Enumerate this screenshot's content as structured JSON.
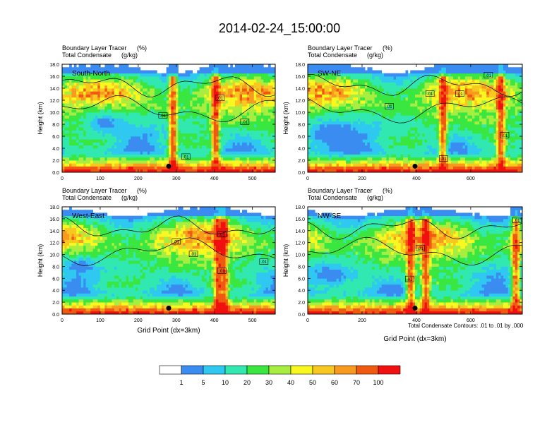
{
  "chart_data": {
    "type": "heatmap",
    "title": "2014-02-24_15:00:00",
    "panels": [
      {
        "label": "South-North",
        "subtitle_left_1": "Boundary Layer Tracer",
        "subtitle_right_1": "(%)",
        "subtitle_left_2": "Total Condensate",
        "subtitle_right_2": "(g/kg)",
        "ylabel": "Height (km)",
        "xlabel": "",
        "xlim": [
          0,
          560
        ],
        "ylim": [
          0,
          18
        ],
        "xticks": [
          0,
          100,
          200,
          300,
          400,
          500
        ],
        "yticks": [
          0.0,
          2.0,
          4.0,
          6.0,
          8.0,
          10.0,
          12.0,
          14.0,
          16.0,
          18.0
        ],
        "ytick_labels": [
          "0.0",
          "2.0",
          "4.0",
          "6.0",
          "8.0",
          "10.0",
          "12.0",
          "14.0",
          "16.0",
          "18.0"
        ],
        "marker": {
          "x": 280,
          "y": 1.0
        },
        "contour_labels": [
          {
            "text": ".01",
            "x": 415,
            "y": 12.4
          },
          {
            "text": ".01",
            "x": 265,
            "y": 9.5
          },
          {
            "text": ".01",
            "x": 480,
            "y": 8.4
          },
          {
            "text": ".01",
            "x": 325,
            "y": 2.6
          }
        ]
      },
      {
        "label": "SW-NE",
        "subtitle_left_1": "Boundary Layer Tracer",
        "subtitle_right_1": "(%)",
        "subtitle_left_2": "Total Condensate",
        "subtitle_right_2": "(g/kg)",
        "ylabel": "Height (km)",
        "xlabel": "",
        "xlim": [
          0,
          790
        ],
        "ylim": [
          0,
          18
        ],
        "xticks": [
          0,
          200,
          400,
          600
        ],
        "yticks": [
          0.0,
          2.0,
          4.0,
          6.0,
          8.0,
          10.0,
          12.0,
          14.0,
          16.0,
          18.0
        ],
        "ytick_labels": [
          "0.0",
          "2.0",
          "4.0",
          "6.0",
          "8.0",
          "10.0",
          "12.0",
          "14.0",
          "16.0",
          "18.0"
        ],
        "marker": {
          "x": 395,
          "y": 1.0
        },
        "contour_labels": [
          {
            "text": ".01",
            "x": 665,
            "y": 16.2
          },
          {
            "text": ".01",
            "x": 450,
            "y": 13.1
          },
          {
            "text": ".01",
            "x": 560,
            "y": 13.1
          },
          {
            "text": ".01",
            "x": 300,
            "y": 11.0
          },
          {
            "text": ".01",
            "x": 725,
            "y": 6.2
          },
          {
            "text": ".01",
            "x": 500,
            "y": 2.3
          }
        ]
      },
      {
        "label": "West-East",
        "subtitle_left_1": "Boundary Layer Tracer",
        "subtitle_right_1": "(%)",
        "subtitle_left_2": "Total Condensate",
        "subtitle_right_2": "(g/kg)",
        "ylabel": "Height (km)",
        "xlabel": "Grid Point (dx=3km)",
        "xlim": [
          0,
          560
        ],
        "ylim": [
          0,
          18
        ],
        "xticks": [
          0,
          100,
          200,
          300,
          400,
          500
        ],
        "yticks": [
          0.0,
          2.0,
          4.0,
          6.0,
          8.0,
          10.0,
          12.0,
          14.0,
          16.0,
          18.0
        ],
        "ytick_labels": [
          "0.0",
          "2.0",
          "4.0",
          "6.0",
          "8.0",
          "10.0",
          "12.0",
          "14.0",
          "16.0",
          "18.0"
        ],
        "marker": {
          "x": 280,
          "y": 1.0
        },
        "contour_labels": [
          {
            "text": ".01",
            "x": 420,
            "y": 13.4
          },
          {
            "text": ".01",
            "x": 300,
            "y": 12.2
          },
          {
            "text": ".01",
            "x": 345,
            "y": 10.1
          },
          {
            "text": ".01",
            "x": 530,
            "y": 8.8
          },
          {
            "text": ".01",
            "x": 420,
            "y": 7.3
          }
        ]
      },
      {
        "label": "NW-SE",
        "subtitle_left_1": "Boundary Layer Tracer",
        "subtitle_right_1": "(%)",
        "subtitle_left_2": "Total Condensate",
        "subtitle_right_2": "(g/kg)",
        "ylabel": "Height (km)",
        "xlabel": "Grid Point (dx=3km)",
        "xlim": [
          0,
          790
        ],
        "ylim": [
          0,
          18
        ],
        "xticks": [
          0,
          200,
          400,
          600
        ],
        "yticks": [
          0.0,
          2.0,
          4.0,
          6.0,
          8.0,
          10.0,
          12.0,
          14.0,
          16.0,
          18.0
        ],
        "ytick_labels": [
          "0.0",
          "2.0",
          "4.0",
          "6.0",
          "8.0",
          "10.0",
          "12.0",
          "14.0",
          "16.0",
          "18.0"
        ],
        "marker": {
          "x": 395,
          "y": 1.0
        },
        "contour_labels": [
          {
            "text": ".01",
            "x": 770,
            "y": 15.8
          },
          {
            "text": ".01",
            "x": 415,
            "y": 11.1
          },
          {
            "text": ".01",
            "x": 375,
            "y": 5.9
          }
        ]
      }
    ],
    "contour_note": "Total Condensate Contours: .01 to .01 by .000",
    "colorbar": {
      "labels": [
        "1",
        "5",
        "10",
        "20",
        "30",
        "40",
        "50",
        "60",
        "70",
        "100"
      ],
      "colors": [
        "#ffffff",
        "#3a8cf0",
        "#2ec8f0",
        "#30e8b0",
        "#3ae640",
        "#a8ee40",
        "#f8f820",
        "#f8c820",
        "#f89a20",
        "#f05a10",
        "#f01010"
      ]
    }
  }
}
